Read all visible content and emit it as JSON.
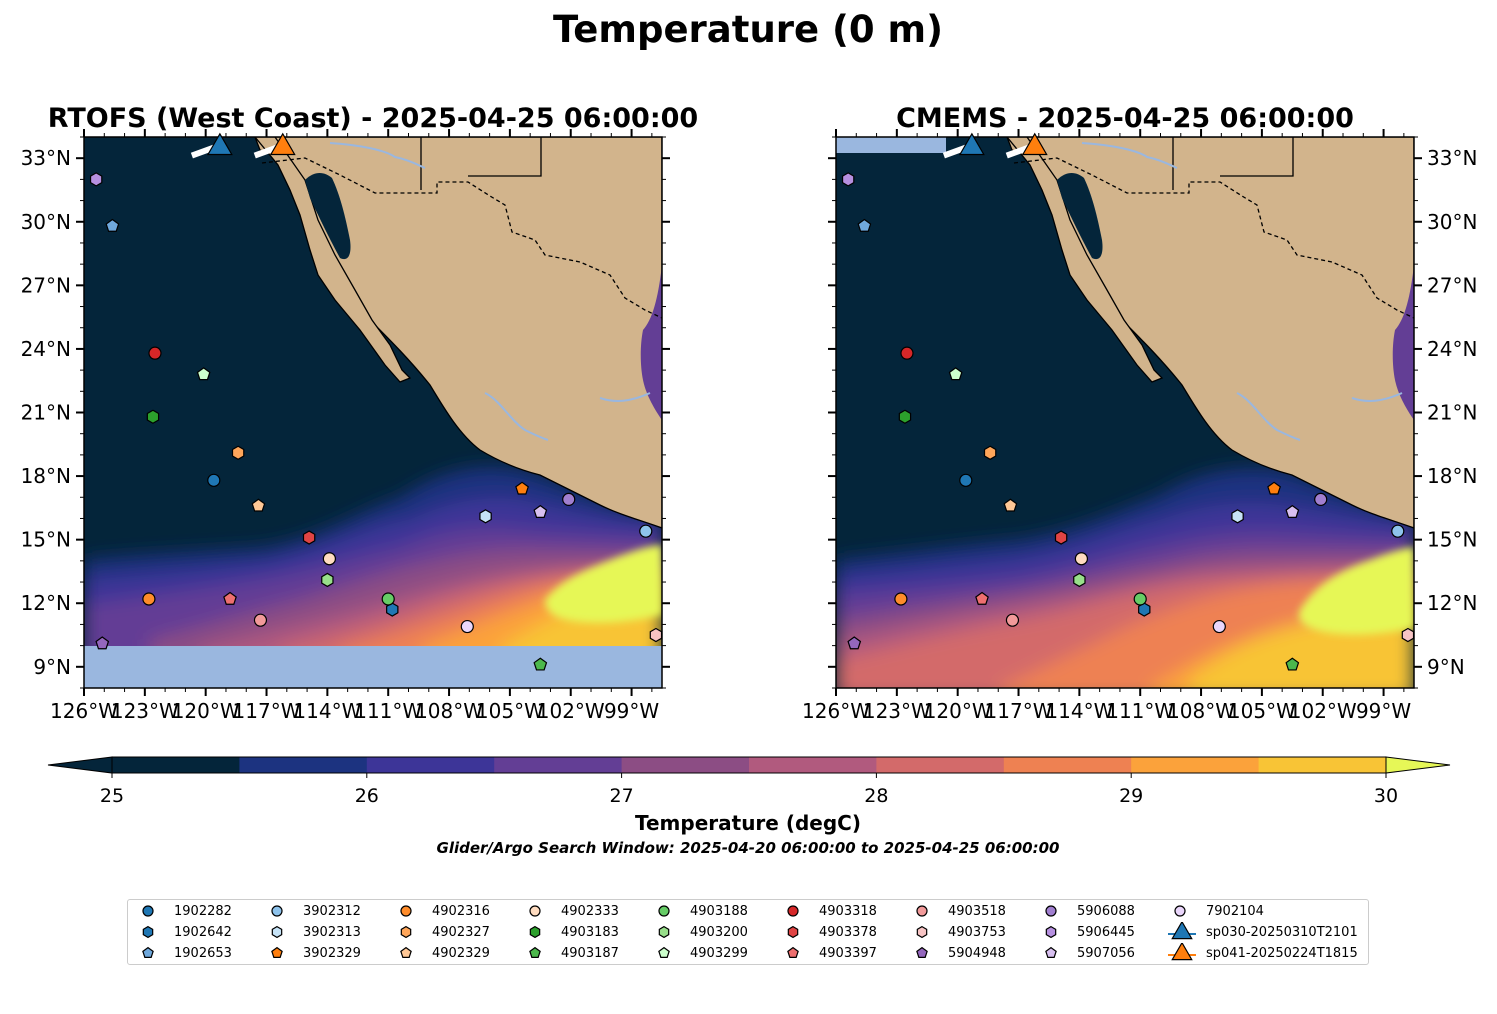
{
  "title": "Temperature (0 m)",
  "chart_data": [
    {
      "type": "heatmap",
      "title": "RTOFS (West Coast) - 2025-04-25 06:00:00",
      "x_ticks": [
        "126°W",
        "123°W",
        "120°W",
        "117°W",
        "114°W",
        "111°W",
        "108°W",
        "105°W",
        "102°W",
        "99°W"
      ],
      "y_ticks": [
        "33°N",
        "30°N",
        "27°N",
        "24°N",
        "21°N",
        "18°N",
        "15°N",
        "12°N",
        "9°N"
      ],
      "lon_range": [
        -126,
        -97.5
      ],
      "lat_range": [
        8,
        34
      ],
      "no_data_south_of_lat": 10.2
    },
    {
      "type": "heatmap",
      "title": "CMEMS - 2025-04-25 06:00:00",
      "x_ticks": [
        "126°W",
        "123°W",
        "120°W",
        "117°W",
        "114°W",
        "111°W",
        "108°W",
        "105°W",
        "102°W",
        "99°W"
      ],
      "y_ticks": [
        "33°N",
        "30°N",
        "27°N",
        "24°N",
        "21°N",
        "18°N",
        "15°N",
        "12°N",
        "9°N"
      ],
      "lon_range": [
        -126,
        -97.5
      ],
      "lat_range": [
        8,
        34
      ]
    }
  ],
  "colorbar": {
    "label": "Temperature (degC)",
    "tick_labels": [
      "25",
      "26",
      "27",
      "28",
      "29",
      "30"
    ],
    "min": 25,
    "max": 30,
    "step": 0.5,
    "colors": [
      "#04253a",
      "#1c3380",
      "#3d3598",
      "#633e95",
      "#8c4d84",
      "#b15a7e",
      "#d36a6a",
      "#ee8152",
      "#fba23b",
      "#f8c436"
    ],
    "under_color": "#04253a",
    "over_color": "#e6f757"
  },
  "subtitle": "Glider/Argo Search Window: 2025-04-20 06:00:00 to 2025-04-25 06:00:00",
  "colors": {
    "land": "#d2b48c",
    "nodata": "#9ab7df",
    "river": "#9ab7df",
    "ocean_cold": "#04253a"
  },
  "platforms": [
    {
      "id": "1902282",
      "marker": "circle",
      "color": "#1f77b4",
      "lon": -119.6,
      "lat": 17.8
    },
    {
      "id": "1902642",
      "marker": "hexagon",
      "color": "#1f77b4",
      "lon": -110.8,
      "lat": 11.7
    },
    {
      "id": "1902653",
      "marker": "pentagon",
      "color": "#6fa8dc",
      "lon": -124.6,
      "lat": 29.8
    },
    {
      "id": "3902312",
      "marker": "circle",
      "color": "#8ec3ec",
      "lon": -98.3,
      "lat": 15.4
    },
    {
      "id": "3902313",
      "marker": "hexagon",
      "color": "#c6e3f7",
      "lon": -106.2,
      "lat": 16.1
    },
    {
      "id": "3902329",
      "marker": "pentagon",
      "color": "#ff7f0e",
      "lon": -104.4,
      "lat": 17.4
    },
    {
      "id": "4902316",
      "marker": "circle",
      "color": "#ff8c2a",
      "lon": -122.8,
      "lat": 12.2
    },
    {
      "id": "4902327",
      "marker": "hexagon",
      "color": "#ffa65a",
      "lon": -118.4,
      "lat": 19.1
    },
    {
      "id": "4902329",
      "marker": "pentagon",
      "color": "#ffc896",
      "lon": -117.4,
      "lat": 16.6
    },
    {
      "id": "4902333",
      "marker": "circle",
      "color": "#ffdcc0",
      "lon": -113.9,
      "lat": 14.1
    },
    {
      "id": "4903183",
      "marker": "hexagon",
      "color": "#2ca02c",
      "lon": -122.6,
      "lat": 20.8
    },
    {
      "id": "4903187",
      "marker": "pentagon",
      "color": "#4cb84c",
      "lon": -103.5,
      "lat": 9.1
    },
    {
      "id": "4903188",
      "marker": "circle",
      "color": "#66cc66",
      "lon": -111.0,
      "lat": 12.2
    },
    {
      "id": "4903200",
      "marker": "hexagon",
      "color": "#98df8a",
      "lon": -114.0,
      "lat": 13.1
    },
    {
      "id": "4903299",
      "marker": "pentagon",
      "color": "#ccffcc",
      "lon": -120.1,
      "lat": 22.8
    },
    {
      "id": "4903318",
      "marker": "circle",
      "color": "#d62728",
      "lon": -122.5,
      "lat": 23.8
    },
    {
      "id": "4903378",
      "marker": "hexagon",
      "color": "#e04444",
      "lon": -114.9,
      "lat": 15.1
    },
    {
      "id": "4903397",
      "marker": "pentagon",
      "color": "#ee6f6f",
      "lon": -118.8,
      "lat": 12.2
    },
    {
      "id": "4903518",
      "marker": "circle",
      "color": "#f29a9a",
      "lon": -117.3,
      "lat": 11.2
    },
    {
      "id": "4903753",
      "marker": "hexagon",
      "color": "#f7c4c4",
      "lon": -97.8,
      "lat": 10.5
    },
    {
      "id": "5904948",
      "marker": "pentagon",
      "color": "#9467bd",
      "lon": -125.1,
      "lat": 10.1
    },
    {
      "id": "5906088",
      "marker": "circle",
      "color": "#a17fd0",
      "lon": -102.1,
      "lat": 16.9
    },
    {
      "id": "5906445",
      "marker": "hexagon",
      "color": "#b690e0",
      "lon": -125.4,
      "lat": 32.0
    },
    {
      "id": "5907056",
      "marker": "pentagon",
      "color": "#d8c0f0",
      "lon": -103.5,
      "lat": 16.3
    },
    {
      "id": "7902104",
      "marker": "circle",
      "color": "#ead6fb",
      "lon": -107.1,
      "lat": 10.9
    },
    {
      "id": "sp030-20250310T2101",
      "marker": "triangle",
      "color": "#1f77b4",
      "lon": -119.3,
      "lat": 33.5
    },
    {
      "id": "sp041-20250224T1815",
      "marker": "triangle",
      "color": "#ff7f0e",
      "lon": -116.2,
      "lat": 33.5
    }
  ]
}
